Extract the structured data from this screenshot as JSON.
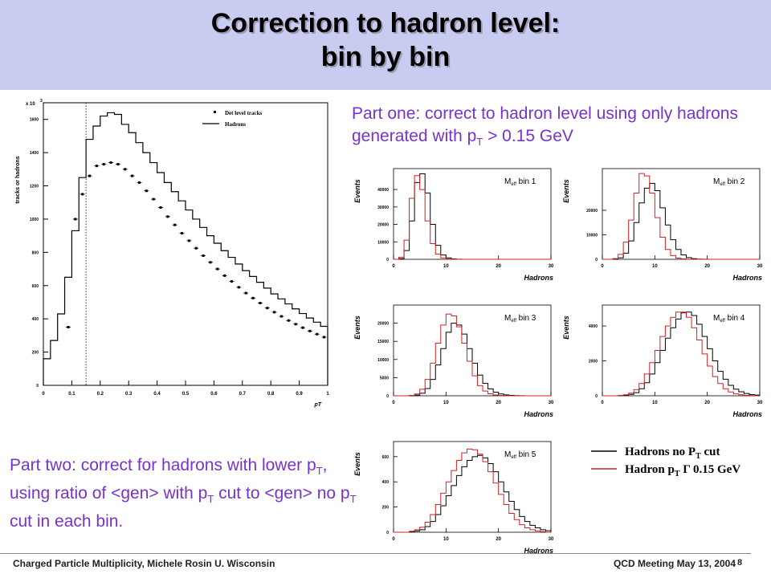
{
  "title": {
    "line1": "Correction to hadron level:",
    "line2": "bin by bin"
  },
  "part_one": {
    "pre": "Part one: correct to hadron level using only hadrons generated with p",
    "sub": "T",
    "post": " > 0.15 GeV"
  },
  "part_two": {
    "t1": "Part two: correct for hadrons with lower p",
    "s1": "T",
    "t2": ", using ratio of <gen> with p",
    "s2": "T",
    "t3": " cut to <gen> no p",
    "s3": "T",
    "t4": " cut in each bin."
  },
  "footer": {
    "left": "Charged Particle Multiplicity, Michele Rosin U. Wisconsin",
    "right": "QCD Meeting May 13, 2004",
    "page": "8"
  },
  "colors": {
    "title_band": "#c8ccf0",
    "text_purple": "#7733cc",
    "hist_black": "#000000",
    "hist_red": "#cc2222"
  },
  "chart_data": [
    {
      "type": "line",
      "ylabel": "tracks or hadrons",
      "xlabel": "pT",
      "yscale_label": "x 10",
      "yscale_exp": "3",
      "xlim": [
        0,
        1.0
      ],
      "ylim": [
        0,
        1700
      ],
      "xticks": [
        "0",
        "0.1",
        "0.2",
        "0.3",
        "0.4",
        "0.5",
        "0.6",
        "0.7",
        "0.8",
        "0.9",
        "1"
      ],
      "yticks": [
        "0",
        "200",
        "400",
        "600",
        "800",
        "1000",
        "1200",
        "1400",
        "1600"
      ],
      "cut_line_x": 0.15,
      "legend": [
        "Det level tracks",
        "Hadrons"
      ],
      "legend_position": "top-right",
      "hadrons": {
        "bin_width": 0.025,
        "values": [
          160,
          270,
          430,
          650,
          930,
          1250,
          1480,
          1560,
          1620,
          1640,
          1630,
          1570,
          1520,
          1460,
          1400,
          1340,
          1280,
          1220,
          1165,
          1110,
          1055,
          1000,
          950,
          900,
          855,
          810,
          770,
          730,
          690,
          655,
          620,
          585,
          550,
          520,
          490,
          460,
          432,
          405,
          380,
          355
        ]
      },
      "det_tracks": {
        "x": [
          0.0875,
          0.1125,
          0.1375,
          0.1625,
          0.1875,
          0.2125,
          0.2375,
          0.2625,
          0.2875,
          0.3125,
          0.3375,
          0.3625,
          0.3875,
          0.4125,
          0.4375,
          0.4625,
          0.4875,
          0.5125,
          0.5375,
          0.5625,
          0.5875,
          0.6125,
          0.6375,
          0.6625,
          0.6875,
          0.7125,
          0.7375,
          0.7625,
          0.7875,
          0.8125,
          0.8375,
          0.8625,
          0.8875,
          0.9125,
          0.9375,
          0.9625,
          0.9875
        ],
        "y": [
          350,
          1000,
          1150,
          1260,
          1320,
          1330,
          1340,
          1330,
          1300,
          1260,
          1220,
          1170,
          1120,
          1070,
          1015,
          965,
          915,
          870,
          825,
          780,
          740,
          700,
          660,
          625,
          590,
          555,
          525,
          495,
          465,
          440,
          415,
          390,
          368,
          347,
          327,
          308,
          290
        ]
      }
    },
    {
      "type": "line",
      "ylabel": "Events",
      "xlabel": "Hadrons",
      "label": "M",
      "label_sub": "eff",
      "label_rest": " bin 1",
      "xlim": [
        0,
        30
      ],
      "ylim": [
        0,
        52000
      ],
      "xticks": [
        "0",
        "10",
        "20",
        "30"
      ],
      "yticks": [
        "0",
        "10000",
        "20000",
        "30000",
        "40000"
      ],
      "ytick_values": [
        0,
        10000,
        20000,
        30000,
        40000
      ],
      "black": [
        0,
        400,
        5000,
        22000,
        44000,
        49000,
        38000,
        20000,
        8000,
        2500,
        800,
        250,
        80,
        25,
        8,
        2,
        0,
        0,
        0,
        0,
        0,
        0,
        0,
        0,
        0,
        0,
        0,
        0,
        0,
        0
      ],
      "red": [
        0,
        1200,
        11000,
        35000,
        48000,
        40000,
        22000,
        9000,
        3000,
        800,
        200,
        60,
        20,
        5,
        0,
        0,
        0,
        0,
        0,
        0,
        0,
        0,
        0,
        0,
        0,
        0,
        0,
        0,
        0,
        0
      ]
    },
    {
      "type": "line",
      "ylabel": "Events",
      "xlabel": "Hadrons",
      "label": "M",
      "label_sub": "eff",
      "label_rest": " bin 2",
      "xlim": [
        0,
        30
      ],
      "ylim": [
        0,
        37000
      ],
      "xticks": [
        "0",
        "10",
        "20",
        "30"
      ],
      "yticks": [
        "0",
        "10000",
        "20000"
      ],
      "ytick_values": [
        0,
        10000,
        20000
      ],
      "black": [
        0,
        0,
        100,
        600,
        2500,
        7500,
        15000,
        23000,
        29000,
        31000,
        28000,
        21000,
        14000,
        8000,
        4000,
        1800,
        700,
        250,
        90,
        30,
        10,
        0,
        0,
        0,
        0,
        0,
        0,
        0,
        0,
        0
      ],
      "red": [
        0,
        0,
        300,
        2000,
        7000,
        16000,
        27000,
        35000,
        34000,
        27000,
        17000,
        9000,
        4000,
        1500,
        500,
        150,
        40,
        10,
        0,
        0,
        0,
        0,
        0,
        0,
        0,
        0,
        0,
        0,
        0,
        0
      ]
    },
    {
      "type": "line",
      "ylabel": "Events",
      "xlabel": "Hadrons",
      "label": "M",
      "label_sub": "eff",
      "label_rest": " bin 3",
      "xlim": [
        0,
        30
      ],
      "ylim": [
        0,
        25000
      ],
      "xticks": [
        "0",
        "10",
        "20",
        "30"
      ],
      "yticks": [
        "0",
        "5000",
        "10000",
        "15000",
        "20000"
      ],
      "ytick_values": [
        0,
        5000,
        10000,
        15000,
        20000
      ],
      "black": [
        0,
        0,
        0,
        50,
        200,
        700,
        2000,
        4500,
        8500,
        13000,
        17500,
        20000,
        19500,
        17000,
        13000,
        9000,
        5700,
        3400,
        1900,
        1000,
        500,
        250,
        120,
        60,
        25,
        10,
        0,
        0,
        0,
        0
      ],
      "red": [
        0,
        0,
        0,
        100,
        500,
        1800,
        4500,
        9000,
        14500,
        19500,
        22500,
        22000,
        19000,
        14500,
        9500,
        5500,
        2800,
        1300,
        550,
        220,
        80,
        30,
        10,
        0,
        0,
        0,
        0,
        0,
        0,
        0
      ]
    },
    {
      "type": "line",
      "ylabel": "Events",
      "xlabel": "Hadrons",
      "label": "M",
      "label_sub": "eff",
      "label_rest": " bin 4",
      "xlim": [
        0,
        30
      ],
      "ylim": [
        0,
        5200
      ],
      "xticks": [
        "0",
        "10",
        "20",
        "30"
      ],
      "yticks": [
        "0",
        "2000",
        "4000"
      ],
      "ytick_values": [
        0,
        2000,
        4000
      ],
      "black": [
        0,
        0,
        0,
        10,
        30,
        80,
        180,
        400,
        750,
        1250,
        1900,
        2600,
        3300,
        3900,
        4400,
        4750,
        4800,
        4600,
        4100,
        3400,
        2700,
        2000,
        1400,
        950,
        600,
        380,
        230,
        130,
        70,
        40
      ],
      "red": [
        0,
        0,
        0,
        20,
        60,
        150,
        350,
        700,
        1250,
        1900,
        2600,
        3400,
        4000,
        4500,
        4800,
        4800,
        4500,
        3900,
        3200,
        2400,
        1700,
        1100,
        700,
        400,
        220,
        110,
        55,
        25,
        10,
        0
      ]
    },
    {
      "type": "line",
      "ylabel": "Events",
      "xlabel": "Hadrons",
      "label": "M",
      "label_sub": "eff",
      "label_rest": " bin 5",
      "xlim": [
        0,
        30
      ],
      "ylim": [
        0,
        720
      ],
      "xticks": [
        "0",
        "10",
        "20",
        "30"
      ],
      "yticks": [
        "0",
        "200",
        "400",
        "600"
      ],
      "ytick_values": [
        0,
        200,
        400,
        600
      ],
      "black": [
        0,
        0,
        0,
        5,
        10,
        20,
        45,
        85,
        140,
        210,
        290,
        370,
        450,
        520,
        570,
        600,
        610,
        590,
        545,
        480,
        400,
        320,
        245,
        180,
        125,
        85,
        55,
        35,
        20,
        12
      ],
      "red": [
        0,
        0,
        0,
        8,
        20,
        40,
        80,
        140,
        220,
        310,
        400,
        490,
        570,
        630,
        660,
        655,
        620,
        560,
        480,
        390,
        300,
        220,
        150,
        100,
        60,
        35,
        20,
        10,
        5,
        0
      ]
    }
  ],
  "legend_box": [
    {
      "text": "Hadrons no P",
      "sub": "T",
      "rest": " cut",
      "color": "#000000"
    },
    {
      "text": "Hadron p",
      "sub": "T",
      "rest": " Γ 0.15 GeV",
      "color": "#cc2222"
    }
  ]
}
